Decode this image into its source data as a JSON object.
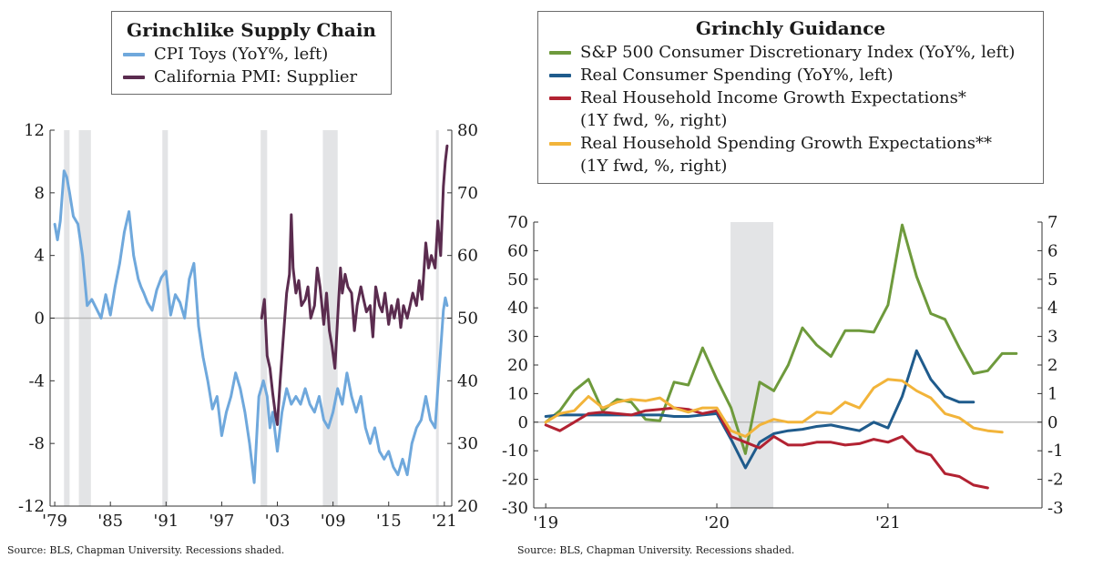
{
  "chart_data": [
    {
      "type": "line",
      "title": "Grinchlike Supply Chain",
      "source": "Source: BLS, Chapman University. Recessions shaded.",
      "x_ticks": [
        "'79",
        "'85",
        "'91",
        "'97",
        "'03",
        "'09",
        "'15",
        "'21"
      ],
      "x_tick_years": [
        1979,
        1985,
        1991,
        1997,
        2003,
        2009,
        2015,
        2021
      ],
      "xlim": [
        1978.5,
        2021.8
      ],
      "y_left": {
        "ylim": [
          -12,
          12
        ],
        "ticks": [
          -12,
          -8,
          -4,
          0,
          4,
          8,
          12
        ],
        "tick_labels": [
          "-12",
          "-8",
          "-4",
          "0",
          "4",
          "8",
          "12"
        ]
      },
      "y_right": {
        "ylim": [
          20,
          80
        ],
        "ticks": [
          20,
          30,
          40,
          50,
          60,
          70,
          80
        ],
        "tick_labels": [
          "20",
          "30",
          "40",
          "50",
          "60",
          "70",
          "80"
        ]
      },
      "recessions": [
        [
          1980.0,
          1980.6
        ],
        [
          1981.6,
          1982.9
        ],
        [
          1990.6,
          1991.2
        ],
        [
          2001.2,
          2001.9
        ],
        [
          2007.9,
          2009.5
        ],
        [
          2020.1,
          2020.4
        ]
      ],
      "zero_line": true,
      "series": [
        {
          "name": "CPI Toys (YoY%, left)",
          "axis": "left",
          "color": "#6fa8dc",
          "x": [
            1979.0,
            1979.3,
            1979.6,
            1980.0,
            1980.3,
            1980.6,
            1981.0,
            1981.5,
            1982.0,
            1982.5,
            1983.0,
            1983.5,
            1984.0,
            1984.5,
            1985.0,
            1985.5,
            1986.0,
            1986.5,
            1987.0,
            1987.5,
            1988.0,
            1988.3,
            1988.6,
            1989.0,
            1989.5,
            1990.0,
            1990.5,
            1991.0,
            1991.5,
            1992.0,
            1992.5,
            1993.0,
            1993.5,
            1994.0,
            1994.5,
            1995.0,
            1995.5,
            1996.0,
            1996.5,
            1997.0,
            1997.5,
            1998.0,
            1998.5,
            1999.0,
            1999.5,
            2000.0,
            2000.5,
            2001.0,
            2001.5,
            2001.9,
            2002.2,
            2002.5,
            2003.0,
            2003.5,
            2004.0,
            2004.5,
            2005.0,
            2005.5,
            2006.0,
            2006.5,
            2007.0,
            2007.5,
            2008.0,
            2008.5,
            2009.0,
            2009.5,
            2010.0,
            2010.5,
            2011.0,
            2011.5,
            2012.0,
            2012.5,
            2013.0,
            2013.5,
            2014.0,
            2014.5,
            2015.0,
            2015.5,
            2016.0,
            2016.5,
            2017.0,
            2017.5,
            2018.0,
            2018.5,
            2019.0,
            2019.5,
            2020.0,
            2020.3,
            2020.6,
            2020.9,
            2021.1,
            2021.3
          ],
          "values": [
            6.0,
            5.0,
            6.2,
            9.4,
            9.0,
            8.0,
            6.5,
            6.0,
            4.0,
            0.8,
            1.2,
            0.6,
            0.0,
            1.5,
            0.2,
            2.0,
            3.5,
            5.5,
            6.8,
            4.0,
            2.5,
            2.0,
            1.6,
            1.0,
            0.5,
            1.8,
            2.6,
            3.0,
            0.2,
            1.5,
            1.0,
            0.0,
            2.5,
            3.5,
            -0.5,
            -2.5,
            -4.0,
            -5.8,
            -5.0,
            -7.5,
            -6.0,
            -5.0,
            -3.5,
            -4.5,
            -6.0,
            -8.0,
            -10.5,
            -5.0,
            -4.0,
            -5.0,
            -7.0,
            -6.0,
            -8.5,
            -6.0,
            -4.5,
            -5.5,
            -5.0,
            -5.5,
            -4.5,
            -5.5,
            -6.0,
            -5.0,
            -6.5,
            -7.0,
            -6.0,
            -4.5,
            -5.5,
            -3.5,
            -5.0,
            -6.0,
            -5.0,
            -7.0,
            -8.0,
            -7.0,
            -8.5,
            -9.0,
            -8.5,
            -9.5,
            -10.0,
            -9.0,
            -10.0,
            -8.0,
            -7.0,
            -6.5,
            -5.0,
            -6.5,
            -7.0,
            -4.5,
            -2.0,
            0.5,
            1.3,
            0.8
          ]
        },
        {
          "name": "California PMI: Supplier",
          "axis": "right",
          "color": "#5b2c4f",
          "x": [
            2001.3,
            2001.6,
            2001.9,
            2002.2,
            2002.5,
            2002.8,
            2003.0,
            2003.3,
            2003.6,
            2004.0,
            2004.3,
            2004.5,
            2004.7,
            2005.0,
            2005.3,
            2005.6,
            2006.0,
            2006.3,
            2006.6,
            2007.0,
            2007.3,
            2007.6,
            2008.0,
            2008.3,
            2008.6,
            2008.9,
            2009.2,
            2009.5,
            2009.8,
            2010.0,
            2010.3,
            2010.6,
            2011.0,
            2011.3,
            2011.6,
            2012.0,
            2012.3,
            2012.6,
            2013.0,
            2013.3,
            2013.6,
            2014.0,
            2014.3,
            2014.6,
            2015.0,
            2015.3,
            2015.6,
            2016.0,
            2016.3,
            2016.6,
            2017.0,
            2017.3,
            2017.6,
            2018.0,
            2018.3,
            2018.6,
            2019.0,
            2019.3,
            2019.6,
            2020.0,
            2020.3,
            2020.6,
            2020.9,
            2021.1,
            2021.3
          ],
          "values": [
            50.0,
            53.0,
            44.0,
            42.0,
            38.0,
            34.5,
            33.0,
            40.0,
            46.0,
            54.0,
            57.0,
            66.5,
            58.0,
            54.0,
            56.0,
            52.0,
            53.0,
            55.0,
            50.0,
            52.0,
            58.0,
            55.0,
            49.0,
            54.0,
            48.0,
            45.5,
            42.0,
            50.0,
            58.0,
            54.0,
            57.0,
            55.0,
            54.0,
            48.0,
            52.0,
            55.0,
            53.0,
            51.0,
            52.0,
            47.0,
            55.0,
            52.0,
            51.0,
            54.0,
            49.0,
            52.0,
            50.0,
            53.0,
            48.5,
            52.0,
            50.0,
            52.0,
            54.0,
            52.0,
            56.0,
            53.0,
            62.0,
            58.0,
            60.0,
            58.0,
            65.5,
            60.0,
            71.0,
            75.0,
            77.5
          ]
        }
      ]
    },
    {
      "type": "line",
      "title": "Grinchly Guidance",
      "source": "Source: BLS, Chapman University. Recessions shaded.",
      "x_ticks": [
        "'19",
        "'20",
        "'21"
      ],
      "x_tick_dates": [
        2019.0,
        2020.0,
        2021.0
      ],
      "xlim": [
        2018.93,
        2021.9
      ],
      "y_left": {
        "ylim": [
          -30,
          70
        ],
        "ticks": [
          -30,
          -20,
          -10,
          0,
          10,
          20,
          30,
          40,
          50,
          60,
          70
        ],
        "tick_labels": [
          "-30",
          "-20",
          "-10",
          "0",
          "10",
          "20",
          "30",
          "40",
          "50",
          "60",
          "70"
        ]
      },
      "y_right": {
        "ylim": [
          -3,
          7
        ],
        "ticks": [
          -3,
          -2,
          -1,
          0,
          1,
          2,
          3,
          4,
          5,
          6,
          7
        ],
        "tick_labels": [
          "-3",
          "-2",
          "-1",
          "0",
          "1",
          "2",
          "3",
          "4",
          "5",
          "6",
          "7"
        ]
      },
      "recessions": [
        [
          2020.08,
          2020.33
        ]
      ],
      "zero_line": true,
      "series": [
        {
          "name": "S&P 500 Consumer Discretionary Index (YoY%, left)",
          "axis": "left",
          "color": "#6e9a3c",
          "x": [
            2019.0,
            2019.083,
            2019.167,
            2019.25,
            2019.333,
            2019.417,
            2019.5,
            2019.583,
            2019.667,
            2019.75,
            2019.833,
            2019.917,
            2020.0,
            2020.083,
            2020.167,
            2020.25,
            2020.333,
            2020.417,
            2020.5,
            2020.583,
            2020.667,
            2020.75,
            2020.833,
            2020.917,
            2021.0,
            2021.083,
            2021.167,
            2021.25,
            2021.333,
            2021.417,
            2021.5,
            2021.583,
            2021.667,
            2021.75
          ],
          "values": [
            0.0,
            4.0,
            11.0,
            15.0,
            4.0,
            8.0,
            7.0,
            1.0,
            0.5,
            14.0,
            13.0,
            26.0,
            15.0,
            5.0,
            -11.0,
            14.0,
            11.0,
            20.0,
            33.0,
            27.0,
            23.0,
            32.0,
            32.0,
            31.5,
            41.0,
            69.0,
            51.0,
            38.0,
            36.0,
            26.0,
            17.0,
            18.0,
            24.0,
            24.0
          ]
        },
        {
          "name": "Real Consumer Spending (YoY%, left)",
          "axis": "left",
          "color": "#1f5b8c",
          "x": [
            2019.0,
            2019.083,
            2019.167,
            2019.25,
            2019.333,
            2019.417,
            2019.5,
            2019.583,
            2019.667,
            2019.75,
            2019.833,
            2019.917,
            2020.0,
            2020.083,
            2020.167,
            2020.25,
            2020.333,
            2020.417,
            2020.5,
            2020.583,
            2020.667,
            2020.75,
            2020.833,
            2020.917,
            2021.0,
            2021.083,
            2021.167,
            2021.25,
            2021.333,
            2021.417,
            2021.5
          ],
          "values": [
            2.0,
            2.5,
            2.5,
            2.5,
            2.5,
            2.5,
            2.5,
            2.5,
            2.5,
            2.0,
            2.0,
            2.5,
            3.0,
            -6.0,
            -16.0,
            -7.0,
            -4.0,
            -3.0,
            -2.5,
            -1.5,
            -1.0,
            -2.0,
            -3.0,
            0.0,
            -2.0,
            9.0,
            25.0,
            15.0,
            9.0,
            7.0,
            7.0
          ]
        },
        {
          "name": "Real Household Income Growth Expectations* (1Y fwd, %, right)",
          "axis": "right",
          "color": "#b22232",
          "x": [
            2019.0,
            2019.083,
            2019.167,
            2019.25,
            2019.333,
            2019.417,
            2019.5,
            2019.583,
            2019.667,
            2019.75,
            2019.833,
            2019.917,
            2020.0,
            2020.083,
            2020.167,
            2020.25,
            2020.333,
            2020.417,
            2020.5,
            2020.583,
            2020.667,
            2020.75,
            2020.833,
            2020.917,
            2021.0,
            2021.083,
            2021.167,
            2021.25,
            2021.333,
            2021.417,
            2021.5,
            2021.583
          ],
          "values": [
            -0.1,
            -0.3,
            0.0,
            0.3,
            0.35,
            0.3,
            0.25,
            0.4,
            0.45,
            0.5,
            0.45,
            0.3,
            0.4,
            -0.5,
            -0.7,
            -0.9,
            -0.5,
            -0.8,
            -0.8,
            -0.7,
            -0.7,
            -0.8,
            -0.75,
            -0.6,
            -0.7,
            -0.5,
            -1.0,
            -1.15,
            -1.8,
            -1.9,
            -2.2,
            -2.3
          ]
        },
        {
          "name": "Real Household Spending Growth Expectations** (1Y fwd, %, right)",
          "axis": "right",
          "color": "#f2b43a",
          "x": [
            2019.0,
            2019.083,
            2019.167,
            2019.25,
            2019.333,
            2019.417,
            2019.5,
            2019.583,
            2019.667,
            2019.75,
            2019.833,
            2019.917,
            2020.0,
            2020.083,
            2020.167,
            2020.25,
            2020.333,
            2020.417,
            2020.5,
            2020.583,
            2020.667,
            2020.75,
            2020.833,
            2020.917,
            2021.0,
            2021.083,
            2021.167,
            2021.25,
            2021.333,
            2021.417,
            2021.5,
            2021.583,
            2021.667
          ],
          "values": [
            0.0,
            0.3,
            0.4,
            0.9,
            0.5,
            0.7,
            0.8,
            0.75,
            0.85,
            0.5,
            0.35,
            0.5,
            0.5,
            -0.3,
            -0.5,
            -0.1,
            0.1,
            0.0,
            0.0,
            0.35,
            0.3,
            0.7,
            0.5,
            1.2,
            1.5,
            1.45,
            1.1,
            0.85,
            0.3,
            0.15,
            -0.2,
            -0.3,
            -0.35
          ]
        }
      ]
    }
  ]
}
